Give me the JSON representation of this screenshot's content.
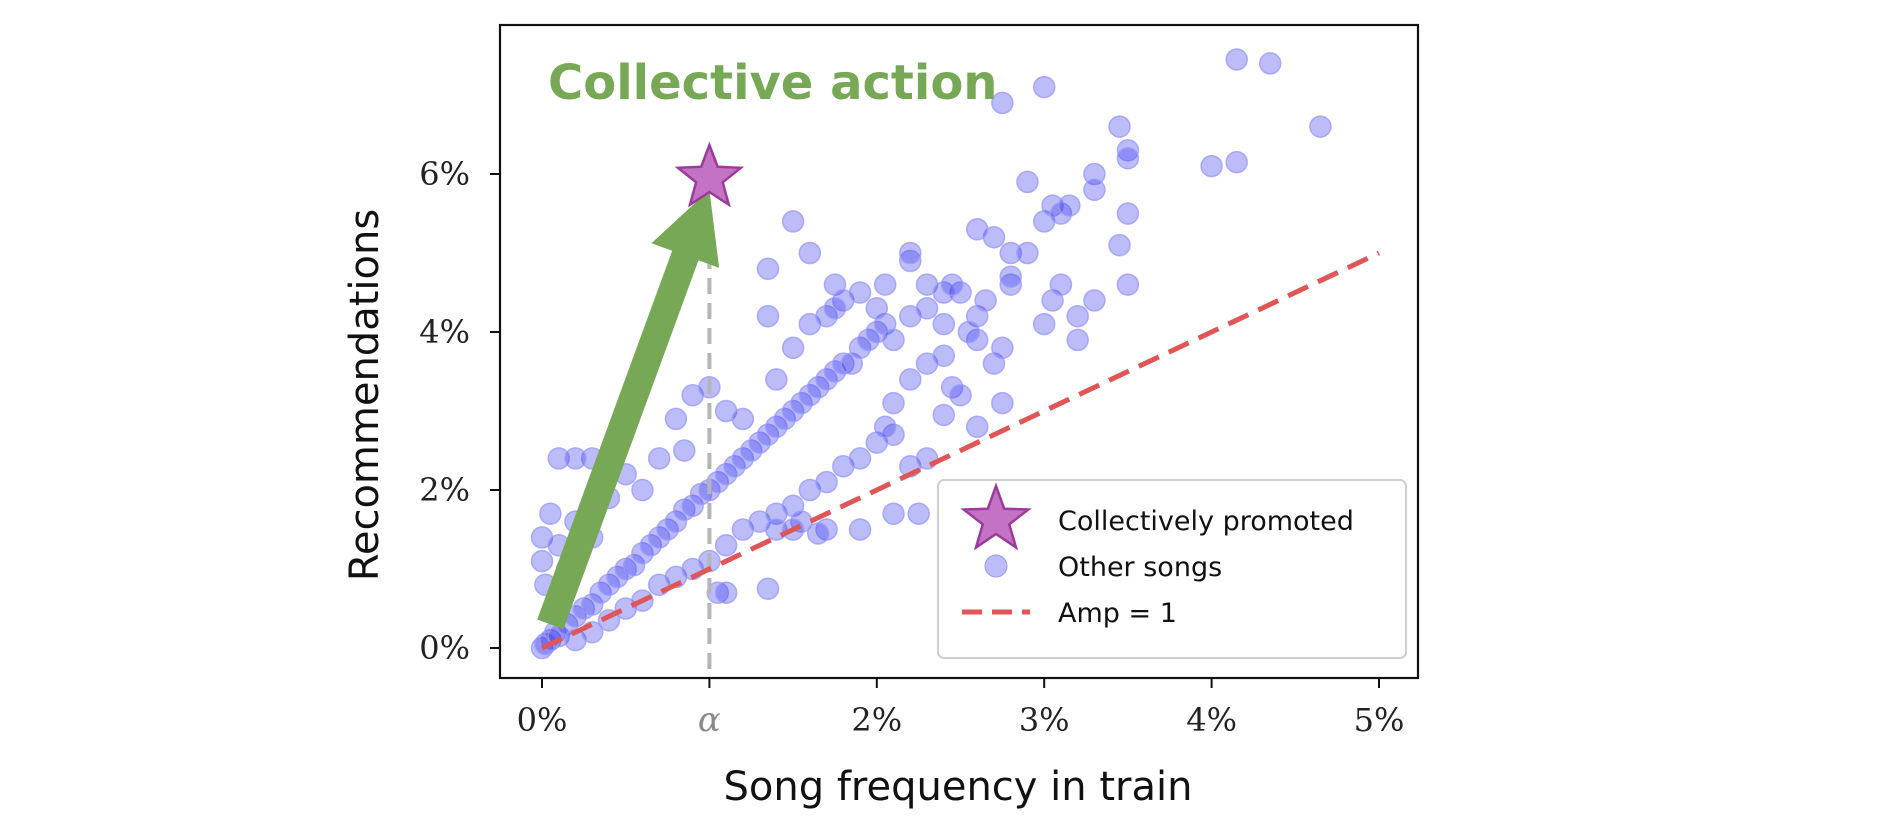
{
  "chart_data": {
    "type": "scatter",
    "title": "",
    "annotation": "Collective action",
    "xlabel": "Song frequency in train",
    "ylabel": "Recommendations",
    "xlim": [
      -0.25,
      5.25
    ],
    "ylim": [
      -0.35,
      7.75
    ],
    "x_ticks": [
      0,
      1,
      2,
      3,
      4,
      5
    ],
    "x_tick_labels": [
      "0%",
      "α",
      "2%",
      "3%",
      "4%",
      "5%"
    ],
    "y_ticks": [
      0,
      2,
      4,
      6
    ],
    "y_tick_labels": [
      "0%",
      "2%",
      "4%",
      "6%"
    ],
    "alpha_marker_x": 1.0,
    "grid": false,
    "legend_position": "bottom-right",
    "colors": {
      "points": "#3333ee",
      "points_edge": "#9a9aff",
      "star_fill": "#c472c4",
      "star_edge": "#9c3a9c",
      "amp_line": "#e05555",
      "arrow": "#77a855",
      "annotation": "#77a855",
      "alpha_line": "#b5b5b5"
    },
    "legend": [
      {
        "label": "Collectively promoted",
        "marker": "star"
      },
      {
        "label": "Other songs",
        "marker": "circle"
      },
      {
        "label": "Amp = 1",
        "marker": "dashed-line"
      }
    ],
    "collectively_promoted": {
      "x": 1.0,
      "y": 6.0
    },
    "reference_line": {
      "label": "Amp = 1",
      "x": [
        0,
        5
      ],
      "y": [
        0,
        5
      ]
    },
    "arrow": {
      "from": [
        0.05,
        0.3
      ],
      "to": [
        1.0,
        5.8
      ]
    },
    "other_songs": {
      "sampling_note": "dense cloud rendered from representative points",
      "points": [
        [
          0,
          0
        ],
        [
          0.02,
          0.05
        ],
        [
          0.05,
          0.1
        ],
        [
          0.08,
          0.2
        ],
        [
          0.1,
          0.15
        ],
        [
          0.15,
          0.3
        ],
        [
          0.2,
          0.4
        ],
        [
          0.25,
          0.5
        ],
        [
          0.3,
          0.55
        ],
        [
          0.35,
          0.7
        ],
        [
          0.4,
          0.8
        ],
        [
          0.45,
          0.9
        ],
        [
          0.5,
          1.0
        ],
        [
          0.55,
          1.05
        ],
        [
          0.6,
          1.2
        ],
        [
          0.65,
          1.3
        ],
        [
          0.7,
          1.4
        ],
        [
          0.75,
          1.5
        ],
        [
          0.8,
          1.6
        ],
        [
          0.85,
          1.75
        ],
        [
          0.9,
          1.8
        ],
        [
          0.95,
          1.95
        ],
        [
          1.0,
          2.0
        ],
        [
          1.05,
          2.1
        ],
        [
          1.1,
          2.2
        ],
        [
          1.15,
          2.3
        ],
        [
          1.2,
          2.4
        ],
        [
          1.25,
          2.5
        ],
        [
          1.3,
          2.6
        ],
        [
          1.35,
          2.7
        ],
        [
          1.4,
          2.8
        ],
        [
          1.45,
          2.9
        ],
        [
          1.5,
          3.0
        ],
        [
          1.55,
          3.1
        ],
        [
          1.6,
          3.2
        ],
        [
          1.65,
          3.3
        ],
        [
          1.7,
          3.4
        ],
        [
          1.75,
          3.5
        ],
        [
          1.8,
          3.6
        ],
        [
          1.85,
          3.6
        ],
        [
          1.9,
          3.8
        ],
        [
          1.95,
          3.9
        ],
        [
          2.0,
          4.0
        ],
        [
          2.05,
          4.1
        ],
        [
          2.1,
          3.9
        ],
        [
          2.2,
          4.2
        ],
        [
          2.3,
          4.3
        ],
        [
          2.4,
          4.1
        ],
        [
          2.5,
          4.5
        ],
        [
          2.6,
          4.2
        ],
        [
          0.0,
          1.4
        ],
        [
          0.0,
          1.1
        ],
        [
          0.02,
          0.8
        ],
        [
          0.05,
          1.7
        ],
        [
          0.1,
          1.3
        ],
        [
          0.15,
          1.0
        ],
        [
          0.2,
          1.6
        ],
        [
          0.3,
          2.4
        ],
        [
          0.3,
          1.4
        ],
        [
          0.4,
          1.9
        ],
        [
          0.5,
          2.2
        ],
        [
          0.6,
          2.0
        ],
        [
          0.7,
          2.4
        ],
        [
          0.8,
          2.9
        ],
        [
          0.9,
          3.2
        ],
        [
          0.85,
          2.5
        ],
        [
          1.0,
          3.3
        ],
        [
          1.1,
          3.0
        ],
        [
          1.2,
          2.9
        ],
        [
          1.4,
          3.4
        ],
        [
          1.5,
          3.8
        ],
        [
          1.6,
          4.1
        ],
        [
          1.7,
          4.2
        ],
        [
          1.75,
          4.6
        ],
        [
          1.8,
          4.4
        ],
        [
          1.9,
          4.5
        ],
        [
          2.0,
          4.3
        ],
        [
          2.2,
          4.9
        ],
        [
          2.3,
          4.6
        ],
        [
          2.4,
          4.5
        ],
        [
          0.2,
          0.1
        ],
        [
          0.3,
          0.2
        ],
        [
          0.4,
          0.35
        ],
        [
          0.5,
          0.5
        ],
        [
          0.6,
          0.6
        ],
        [
          0.7,
          0.8
        ],
        [
          0.8,
          0.9
        ],
        [
          0.9,
          1.0
        ],
        [
          1.0,
          1.1
        ],
        [
          1.1,
          1.3
        ],
        [
          1.2,
          1.5
        ],
        [
          1.3,
          1.6
        ],
        [
          1.4,
          1.7
        ],
        [
          1.5,
          1.8
        ],
        [
          1.6,
          2.0
        ],
        [
          1.7,
          2.1
        ],
        [
          1.8,
          2.3
        ],
        [
          1.9,
          2.4
        ],
        [
          2.0,
          2.6
        ],
        [
          2.1,
          2.7
        ],
        [
          1.05,
          0.7
        ],
        [
          1.35,
          0.75
        ],
        [
          1.4,
          1.5
        ],
        [
          1.55,
          1.6
        ],
        [
          1.7,
          1.5
        ],
        [
          1.9,
          1.5
        ],
        [
          2.1,
          1.7
        ],
        [
          2.2,
          2.3
        ],
        [
          2.3,
          2.4
        ],
        [
          2.05,
          2.8
        ],
        [
          2.1,
          3.1
        ],
        [
          2.2,
          3.4
        ],
        [
          2.3,
          3.6
        ],
        [
          2.4,
          3.7
        ],
        [
          2.45,
          3.3
        ],
        [
          2.5,
          3.2
        ],
        [
          2.6,
          3.9
        ],
        [
          2.65,
          4.4
        ],
        [
          2.7,
          3.6
        ],
        [
          2.75,
          3.8
        ],
        [
          2.4,
          2.95
        ],
        [
          2.6,
          2.8
        ],
        [
          2.75,
          3.1
        ],
        [
          2.8,
          4.6
        ],
        [
          2.8,
          5.0
        ],
        [
          2.7,
          5.2
        ],
        [
          2.6,
          5.3
        ],
        [
          2.9,
          5.0
        ],
        [
          2.9,
          5.9
        ],
        [
          3.0,
          5.4
        ],
        [
          3.05,
          5.6
        ],
        [
          3.1,
          5.5
        ],
        [
          3.15,
          5.6
        ],
        [
          3.05,
          4.4
        ],
        [
          3.1,
          4.6
        ],
        [
          3.0,
          4.1
        ],
        [
          3.2,
          4.2
        ],
        [
          3.3,
          4.4
        ],
        [
          3.3,
          6.0
        ],
        [
          3.45,
          5.1
        ],
        [
          3.5,
          5.5
        ],
        [
          3.5,
          4.6
        ],
        [
          3.5,
          6.3
        ],
        [
          3.5,
          6.2
        ],
        [
          3.45,
          6.6
        ],
        [
          3.2,
          3.9
        ],
        [
          3.3,
          5.8
        ],
        [
          2.75,
          6.9
        ],
        [
          3.0,
          7.1
        ],
        [
          4.0,
          6.1
        ],
        [
          4.15,
          6.15
        ],
        [
          4.15,
          7.45
        ],
        [
          4.35,
          7.4
        ],
        [
          4.65,
          6.6
        ],
        [
          1.5,
          1.5
        ],
        [
          1.65,
          1.45
        ],
        [
          2.25,
          1.7
        ],
        [
          1.1,
          0.7
        ],
        [
          0.1,
          2.4
        ],
        [
          0.2,
          2.4
        ],
        [
          1.5,
          5.4
        ],
        [
          1.6,
          5.0
        ],
        [
          1.35,
          4.2
        ],
        [
          1.35,
          4.8
        ],
        [
          1.75,
          4.3
        ],
        [
          2.05,
          4.6
        ],
        [
          2.2,
          5.0
        ],
        [
          2.45,
          4.6
        ],
        [
          2.55,
          4.0
        ],
        [
          2.8,
          4.7
        ]
      ]
    }
  }
}
